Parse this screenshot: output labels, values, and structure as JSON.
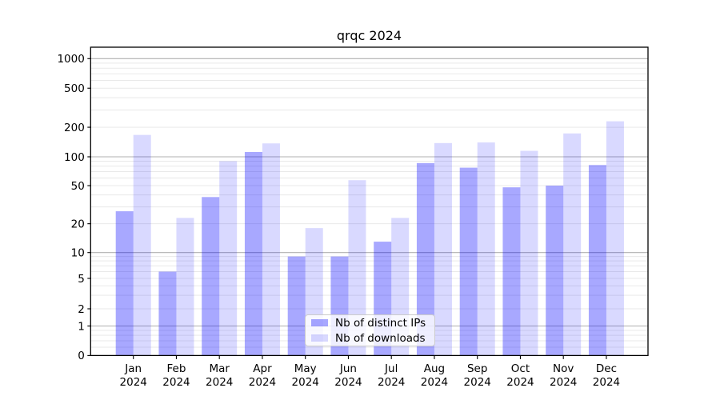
{
  "figure": {
    "title": "qrqc 2024"
  },
  "chart_data": {
    "type": "bar",
    "title": "qrqc 2024",
    "categories": [
      "Jan 2024",
      "Feb 2024",
      "Mar 2024",
      "Apr 2024",
      "May 2024",
      "Jun 2024",
      "Jul 2024",
      "Aug 2024",
      "Sep 2024",
      "Oct 2024",
      "Nov 2024",
      "Dec 2024"
    ],
    "series": [
      {
        "name": "Nb of distinct IPs",
        "color": "rgba(0,0,255,0.34)",
        "values": [
          27,
          6,
          38,
          112,
          9,
          9,
          13,
          86,
          77,
          48,
          50,
          82
        ]
      },
      {
        "name": "Nb of downloads",
        "color": "rgba(0,0,255,0.15)",
        "values": [
          167,
          23,
          90,
          137,
          18,
          57,
          23,
          138,
          140,
          115,
          173,
          230
        ]
      }
    ],
    "x_axis": {
      "tick_line1": [
        "Jan",
        "Feb",
        "Mar",
        "Apr",
        "May",
        "Jun",
        "Jul",
        "Aug",
        "Sep",
        "Oct",
        "Nov",
        "Dec"
      ],
      "tick_line2": "2024"
    },
    "y_axis": {
      "scale": "symlog",
      "ticks": [
        0,
        1,
        2,
        5,
        10,
        20,
        50,
        100,
        200,
        500,
        1000
      ],
      "major_gridlines": [
        1,
        10,
        100,
        1000
      ],
      "range": [
        0,
        1000
      ]
    },
    "legend": {
      "position": "lower center",
      "entries": [
        "Nb of distinct IPs",
        "Nb of downloads"
      ]
    },
    "grid": true,
    "colors": {
      "major_grid": "#b0b0b0",
      "minor_grid": "#e9e9e9",
      "spine": "#000000",
      "text": "#000000",
      "legend_border": "#cccccc",
      "legend_bg": "rgba(255,255,255,0.8)"
    }
  }
}
